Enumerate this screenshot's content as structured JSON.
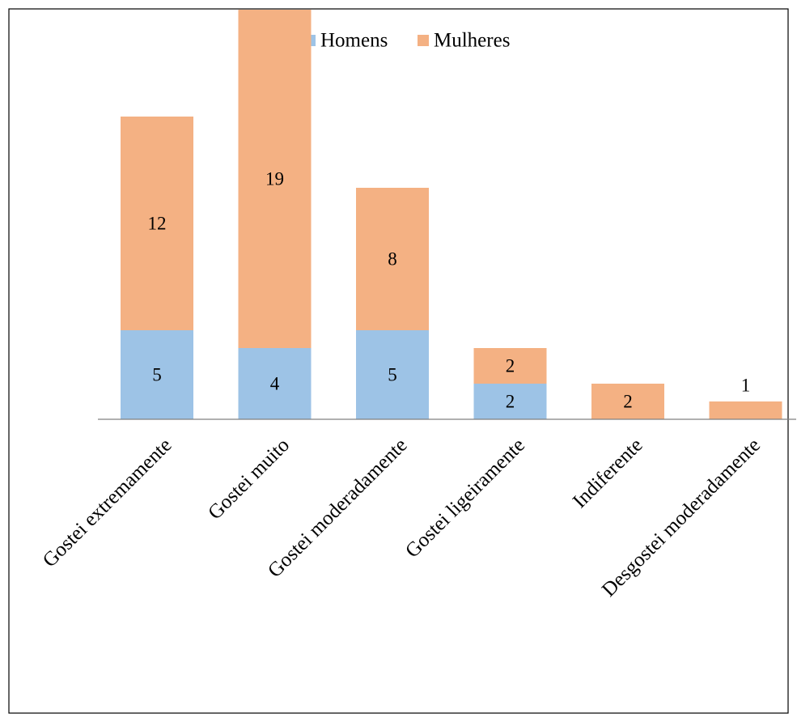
{
  "chart_data": {
    "type": "bar",
    "stacked": true,
    "title": "",
    "xlabel": "",
    "ylabel": "",
    "categories": [
      "Gostei extremamente",
      "Gostei muito",
      "Gostei moderadamente",
      "Gostei ligeiramente",
      "Indiferente",
      "Desgostei moderadamente"
    ],
    "series": [
      {
        "name": "Homens",
        "color": "#9DC3E6",
        "values": [
          5,
          4,
          5,
          2,
          0,
          0
        ],
        "labels": [
          "5",
          "4",
          "5",
          "2",
          "",
          ""
        ]
      },
      {
        "name": "Mulheres",
        "color": "#F4B183",
        "values": [
          12,
          19,
          8,
          2,
          2,
          1
        ],
        "labels": [
          "12",
          "19",
          "8",
          "2",
          "2",
          "1"
        ]
      }
    ],
    "ylim": [
      0,
      23
    ],
    "y_axis_visible": false,
    "grid": false,
    "legend_position": "top-center",
    "frame_color": "#000000",
    "axis_color": "#808080"
  }
}
